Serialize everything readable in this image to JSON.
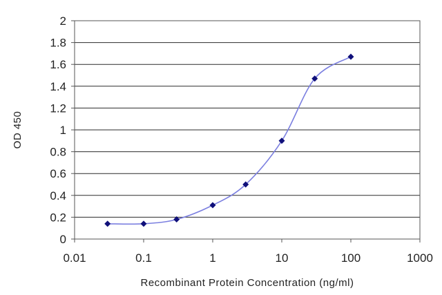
{
  "chart_data": {
    "type": "line",
    "title": "",
    "xlabel": "Recombinant Protein Concentration (ng/ml)",
    "ylabel": "OD 450",
    "x_scale": "log",
    "xlim": [
      0.01,
      1000
    ],
    "ylim": [
      0,
      2
    ],
    "x_ticks": [
      "0.01",
      "0.1",
      "1",
      "10",
      "100",
      "1000"
    ],
    "y_ticks": [
      "0",
      "0.2",
      "0.4",
      "0.6",
      "0.8",
      "1",
      "1.2",
      "1.4",
      "1.6",
      "1.8",
      "2"
    ],
    "grid": "horizontal",
    "legend": "none",
    "series": [
      {
        "x": [
          0.03,
          0.1,
          0.3,
          1,
          3,
          10,
          30,
          100
        ],
        "y": [
          0.14,
          0.14,
          0.18,
          0.31,
          0.5,
          0.9,
          1.47,
          1.67
        ]
      }
    ],
    "colors": {
      "line": "#7b7fe0",
      "marker": "#10107a",
      "grid": "#2a2a2a",
      "axis": "#555555"
    }
  }
}
